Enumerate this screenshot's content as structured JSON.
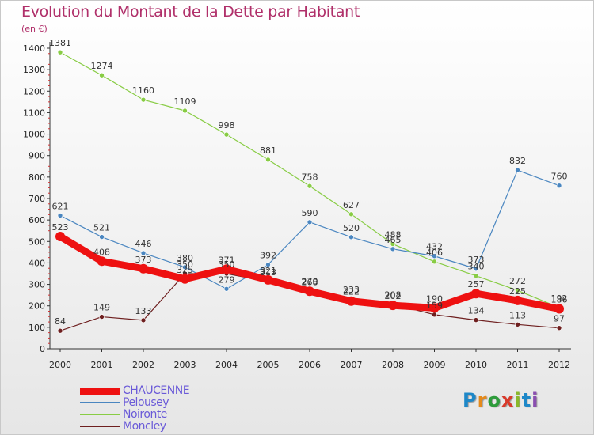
{
  "header": {
    "title": "Evolution du Montant de la Dette par Habitant",
    "unit": "(en €)"
  },
  "logo": {
    "letters": [
      "P",
      "r",
      "o",
      "x",
      "i",
      "t",
      "i"
    ],
    "colors": [
      "#1e88c8",
      "#e58a1c",
      "#2e9c3b",
      "#d93a2b",
      "#8ab82a",
      "#1e88c8",
      "#8a4fb0"
    ]
  },
  "chart_data": {
    "type": "line",
    "title": "Evolution du Montant de la Dette par Habitant",
    "subtitle": "(en €)",
    "xlabel": "",
    "ylabel": "",
    "x": [
      "2000",
      "2001",
      "2002",
      "2003",
      "2004",
      "2005",
      "2006",
      "2007",
      "2008",
      "2009",
      "2010",
      "2011",
      "2012"
    ],
    "ylim": [
      0,
      1400
    ],
    "yticks": [
      0,
      100,
      200,
      300,
      400,
      500,
      600,
      700,
      800,
      900,
      1000,
      1100,
      1200,
      1300,
      1400
    ],
    "grid": false,
    "legend": "bottom-left",
    "series": [
      {
        "name": "CHAUCENNE",
        "color": "#ee1111",
        "values": [
          523,
          408,
          373,
          325,
          371,
          321,
          268,
          222,
          202,
          190,
          257,
          225,
          186
        ]
      },
      {
        "name": "Pelousey",
        "color": "#4a86c0",
        "values": [
          621,
          521,
          446,
          380,
          279,
          392,
          590,
          520,
          465,
          432,
          373,
          832,
          760
        ]
      },
      {
        "name": "Noironte",
        "color": "#88cc44",
        "values": [
          1381,
          1274,
          1160,
          1109,
          998,
          881,
          758,
          627,
          488,
          406,
          340,
          272,
          192
        ]
      },
      {
        "name": "Moncley",
        "color": "#6e1f1f",
        "values": [
          84,
          149,
          133,
          350,
          350,
          313,
          270,
          233,
          208,
          159,
          134,
          113,
          97
        ]
      }
    ]
  }
}
